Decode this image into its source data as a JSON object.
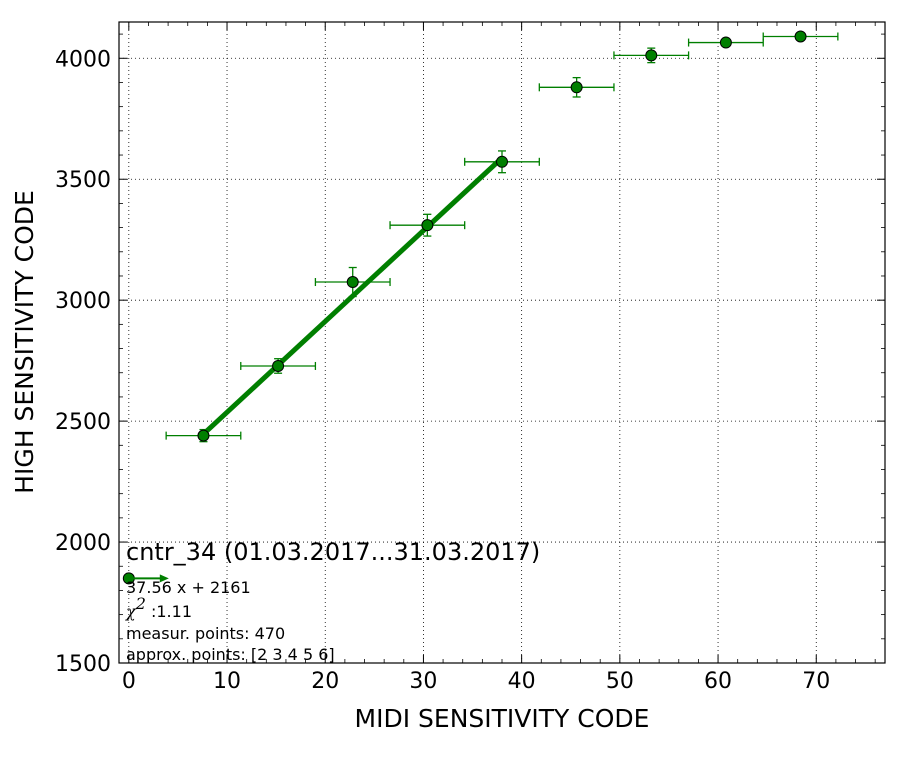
{
  "chart_data": {
    "type": "scatter",
    "title": "",
    "xlabel": "MIDI SENSITIVITY CODE",
    "ylabel": "HIGH SENSITIVITY CODE",
    "xlim": [
      -1,
      77
    ],
    "ylim": [
      1500,
      4150
    ],
    "xticks": [
      "0",
      "10",
      "20",
      "30",
      "40",
      "50",
      "60",
      "70"
    ],
    "yticks": [
      "1500",
      "2000",
      "2500",
      "3000",
      "3500",
      "4000"
    ],
    "grid": true,
    "colors": {
      "series": "#007f00",
      "marker_edge": "#000000",
      "text": "#000000"
    },
    "series": [
      {
        "points": [
          {
            "x": 0.0,
            "y": 1850,
            "xerr": 0,
            "yerr": 0
          },
          {
            "x": 7.6,
            "y": 2440,
            "xerr": 3.8,
            "yerr": 25
          },
          {
            "x": 15.2,
            "y": 2728,
            "xerr": 3.8,
            "yerr": 30
          },
          {
            "x": 22.8,
            "y": 3075,
            "xerr": 3.8,
            "yerr": 60
          },
          {
            "x": 30.4,
            "y": 3310,
            "xerr": 3.8,
            "yerr": 45
          },
          {
            "x": 38.0,
            "y": 3572,
            "xerr": 3.8,
            "yerr": 45
          },
          {
            "x": 45.6,
            "y": 3880,
            "xerr": 3.8,
            "yerr": 40
          },
          {
            "x": 53.2,
            "y": 4012,
            "xerr": 3.8,
            "yerr": 30
          },
          {
            "x": 60.8,
            "y": 4065,
            "xerr": 3.8,
            "yerr": 15
          },
          {
            "x": 68.4,
            "y": 4090,
            "xerr": 3.8,
            "yerr": 10
          }
        ]
      }
    ],
    "fit": {
      "slope": 37.56,
      "intercept": 2161,
      "x_range": [
        7.6,
        38.0
      ]
    },
    "annotations": {
      "title": "cntr_34 (01.03.2017...31.03.2017)",
      "equation": "37.56 x + 2161",
      "chi_symbol": "χ",
      "chi_exp": "2",
      "chi_value": " :1.11",
      "measur": "measur. points: 470",
      "approx": "approx. points: [2 3 4 5 6]"
    }
  }
}
